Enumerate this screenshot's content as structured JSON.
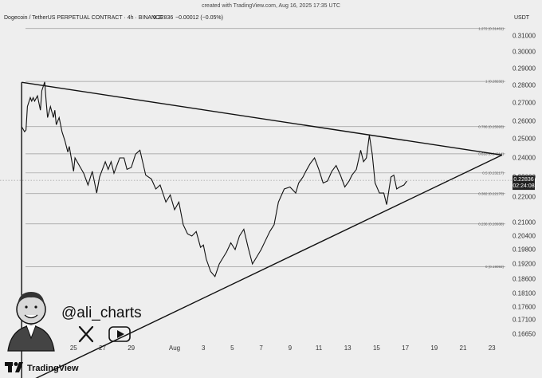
{
  "caption": "created with TradingView.com, Aug 16, 2025 17:35 UTC",
  "header": {
    "symbol": "Dogecoin / TetherUS PERPETUAL CONTRACT · 4h · BINANCE",
    "price": "0.22836",
    "change": "−0.00012 (−0.05%)",
    "currency": "USDT"
  },
  "price_tag": {
    "value": "0.22836",
    "countdown": "02:24:08"
  },
  "branding": {
    "handle": "@ali_charts",
    "logo_text": "TradingView",
    "x_icon": "x-logo-icon",
    "youtube_icon": "youtube-play-icon",
    "avatar": "cartoon-avatar",
    "logo_icon": "tradingview-logo-icon"
  },
  "colors": {
    "background": "#eeeeee",
    "line": "#111111",
    "gridline": "#999999",
    "price_box": "#222222"
  },
  "chart_data": {
    "type": "line",
    "title": "",
    "xlabel": "",
    "ylabel": "",
    "x_ticks": [
      "25",
      "27",
      "29",
      "Aug",
      "3",
      "5",
      "7",
      "9",
      "11",
      "13",
      "15",
      "17",
      "19",
      "21",
      "23"
    ],
    "x_tick_days": [
      -7,
      -5,
      -3,
      0,
      2,
      4,
      6,
      8,
      10,
      12,
      14,
      16,
      18,
      20,
      22
    ],
    "xlim_days": [
      -10.7,
      24.8
    ],
    "y_ticks": [
      0.31,
      0.3,
      0.29,
      0.28,
      0.27,
      0.26,
      0.25,
      0.24,
      0.23,
      0.22,
      0.21,
      0.204,
      0.198,
      0.192,
      0.186,
      0.181,
      0.176,
      0.171,
      0.1665
    ],
    "y_tick_labels": [
      "0.31000",
      "0.30000",
      "0.29000",
      "0.28000",
      "0.27000",
      "0.26000",
      "0.25000",
      "0.24000",
      "0.23000",
      "0.22000",
      "0.21000",
      "0.20400",
      "0.19800",
      "0.19200",
      "0.18600",
      "0.18100",
      "0.17600",
      "0.17100",
      "0.16650"
    ],
    "fib_levels": [
      {
        "label": "1.272 (0.31461)",
        "value": 0.31461
      },
      {
        "label": "1 (0.28232)",
        "value": 0.28232
      },
      {
        "label": "0.786 (0.25693)",
        "value": 0.25693
      },
      {
        "label": "0.618 (0.24214)",
        "value": 0.24214
      },
      {
        "label": "0.5 (0.23217)",
        "value": 0.23217
      },
      {
        "label": "0.382 (0.22170)",
        "value": 0.2217
      },
      {
        "label": "0.236 (0.20938)",
        "value": 0.20938
      },
      {
        "label": "0 (0.19093)",
        "value": 0.19093
      }
    ],
    "series": [
      {
        "x_days": [
          -10.6,
          -10.4,
          -10.3,
          -10.2,
          -10.0,
          -9.9,
          -9.8,
          -9.7,
          -9.5,
          -9.3,
          -9.2,
          -9.0,
          -8.9,
          -8.8,
          -8.6,
          -8.4,
          -8.3,
          -8.2,
          -8.0,
          -7.8,
          -7.6,
          -7.4,
          -7.3,
          -7.0,
          -6.9,
          -6.6,
          -6.3,
          -6.0,
          -5.7,
          -5.4,
          -5.2,
          -4.8,
          -4.6,
          -4.4,
          -4.2,
          -4.0,
          -3.8,
          -3.5,
          -3.3,
          -3.0,
          -2.7,
          -2.4,
          -2.0,
          -1.6,
          -1.3,
          -1.0,
          -0.6,
          -0.3,
          0.0,
          0.3,
          0.6,
          0.9,
          1.2,
          1.5,
          1.8,
          2.0,
          2.2,
          2.5,
          2.8,
          3.1,
          3.3,
          3.6,
          3.9,
          4.2,
          4.5,
          4.8,
          5.1,
          5.4,
          5.7,
          6.0,
          6.3,
          6.6,
          6.9,
          7.2,
          7.6,
          8.0,
          8.4,
          8.6,
          8.9,
          9.1,
          9.4,
          9.7,
          10.0,
          10.3,
          10.6,
          10.9,
          11.2,
          11.5,
          11.8,
          12.1,
          12.3,
          12.6,
          12.9,
          13.1,
          13.3,
          13.5,
          13.7,
          13.9,
          14.2,
          14.5,
          14.7,
          15.0,
          15.2,
          15.4,
          15.6,
          15.9,
          16.1
        ],
        "values": [
          0.257,
          0.254,
          0.255,
          0.268,
          0.273,
          0.271,
          0.273,
          0.271,
          0.274,
          0.266,
          0.277,
          0.282,
          0.271,
          0.262,
          0.268,
          0.262,
          0.266,
          0.258,
          0.262,
          0.254,
          0.249,
          0.243,
          0.246,
          0.233,
          0.24,
          0.236,
          0.232,
          0.226,
          0.233,
          0.222,
          0.23,
          0.238,
          0.234,
          0.238,
          0.232,
          0.236,
          0.24,
          0.24,
          0.234,
          0.235,
          0.242,
          0.244,
          0.231,
          0.229,
          0.224,
          0.226,
          0.218,
          0.221,
          0.215,
          0.218,
          0.209,
          0.205,
          0.204,
          0.206,
          0.199,
          0.2,
          0.194,
          0.189,
          0.187,
          0.192,
          0.194,
          0.197,
          0.201,
          0.198,
          0.204,
          0.207,
          0.199,
          0.192,
          0.195,
          0.198,
          0.202,
          0.206,
          0.209,
          0.218,
          0.224,
          0.225,
          0.222,
          0.227,
          0.23,
          0.233,
          0.237,
          0.24,
          0.234,
          0.227,
          0.228,
          0.233,
          0.236,
          0.231,
          0.225,
          0.228,
          0.231,
          0.234,
          0.244,
          0.238,
          0.24,
          0.252,
          0.242,
          0.227,
          0.222,
          0.222,
          0.217,
          0.23,
          0.231,
          0.224,
          0.225,
          0.226,
          0.228
        ]
      }
    ],
    "trendlines": [
      {
        "name": "upper",
        "from": [
          -10.6,
          0.2818
        ],
        "to": [
          22.7,
          0.2415
        ]
      },
      {
        "name": "lower",
        "from": [
          -10.6,
          0.1505
        ],
        "to": [
          22.7,
          0.2415
        ]
      },
      {
        "name": "vertical",
        "from": [
          -10.6,
          0.1505
        ],
        "to": [
          -10.6,
          0.2818
        ]
      }
    ],
    "last_price": 0.22836,
    "grid": false
  }
}
